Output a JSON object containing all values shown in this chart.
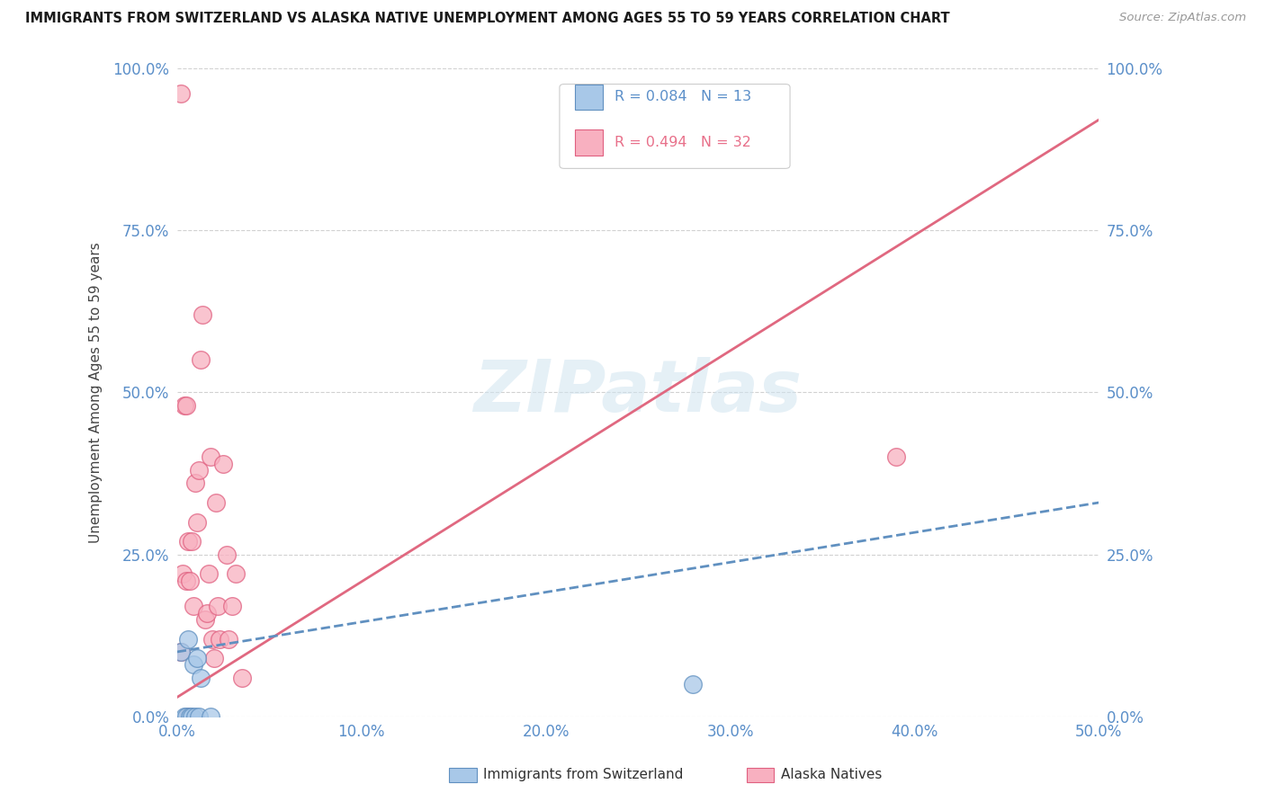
{
  "title": "IMMIGRANTS FROM SWITZERLAND VS ALASKA NATIVE UNEMPLOYMENT AMONG AGES 55 TO 59 YEARS CORRELATION CHART",
  "source": "Source: ZipAtlas.com",
  "ylabel": "Unemployment Among Ages 55 to 59 years",
  "xlim": [
    0.0,
    0.5
  ],
  "ylim": [
    0.0,
    1.0
  ],
  "xticks": [
    0.0,
    0.1,
    0.2,
    0.3,
    0.4,
    0.5
  ],
  "yticks": [
    0.0,
    0.25,
    0.5,
    0.75,
    1.0
  ],
  "xtick_labels": [
    "0.0%",
    "10.0%",
    "20.0%",
    "30.0%",
    "40.0%",
    "50.0%"
  ],
  "ytick_labels": [
    "0.0%",
    "25.0%",
    "50.0%",
    "75.0%",
    "100.0%"
  ],
  "legend_label1": "Immigrants from Switzerland",
  "legend_label2": "Alaska Natives",
  "R1": 0.084,
  "N1": 13,
  "R2": 0.494,
  "N2": 32,
  "color_blue_fill": "#a8c8e8",
  "color_blue_edge": "#6090c0",
  "color_pink_fill": "#f8b0c0",
  "color_pink_edge": "#e06080",
  "color_blue_line": "#6090c0",
  "color_pink_line": "#e06880",
  "color_blue_text": "#5b8fc9",
  "color_pink_text": "#e8708a",
  "watermark_color": "#d0e4f0",
  "background_color": "#ffffff",
  "swiss_x": [
    0.002,
    0.004,
    0.005,
    0.006,
    0.007,
    0.008,
    0.009,
    0.01,
    0.011,
    0.012,
    0.013,
    0.018,
    0.28
  ],
  "swiss_y": [
    0.1,
    0.0,
    0.0,
    0.12,
    0.0,
    0.0,
    0.08,
    0.0,
    0.09,
    0.0,
    0.06,
    0.0,
    0.05
  ],
  "alaska_x": [
    0.002,
    0.003,
    0.004,
    0.005,
    0.005,
    0.006,
    0.006,
    0.007,
    0.008,
    0.009,
    0.01,
    0.011,
    0.012,
    0.013,
    0.014,
    0.015,
    0.016,
    0.017,
    0.018,
    0.019,
    0.02,
    0.021,
    0.022,
    0.023,
    0.025,
    0.027,
    0.028,
    0.03,
    0.032,
    0.035,
    0.39,
    0.002
  ],
  "alaska_y": [
    0.1,
    0.22,
    0.48,
    0.48,
    0.21,
    0.27,
    0.0,
    0.21,
    0.27,
    0.17,
    0.36,
    0.3,
    0.38,
    0.55,
    0.62,
    0.15,
    0.16,
    0.22,
    0.4,
    0.12,
    0.09,
    0.33,
    0.17,
    0.12,
    0.39,
    0.25,
    0.12,
    0.17,
    0.22,
    0.06,
    0.4,
    0.96
  ],
  "pink_line_x0": 0.0,
  "pink_line_y0": 0.03,
  "pink_line_x1": 0.5,
  "pink_line_y1": 0.92,
  "blue_line_x0": 0.0,
  "blue_line_y0": 0.1,
  "blue_line_x1": 0.5,
  "blue_line_y1": 0.33
}
